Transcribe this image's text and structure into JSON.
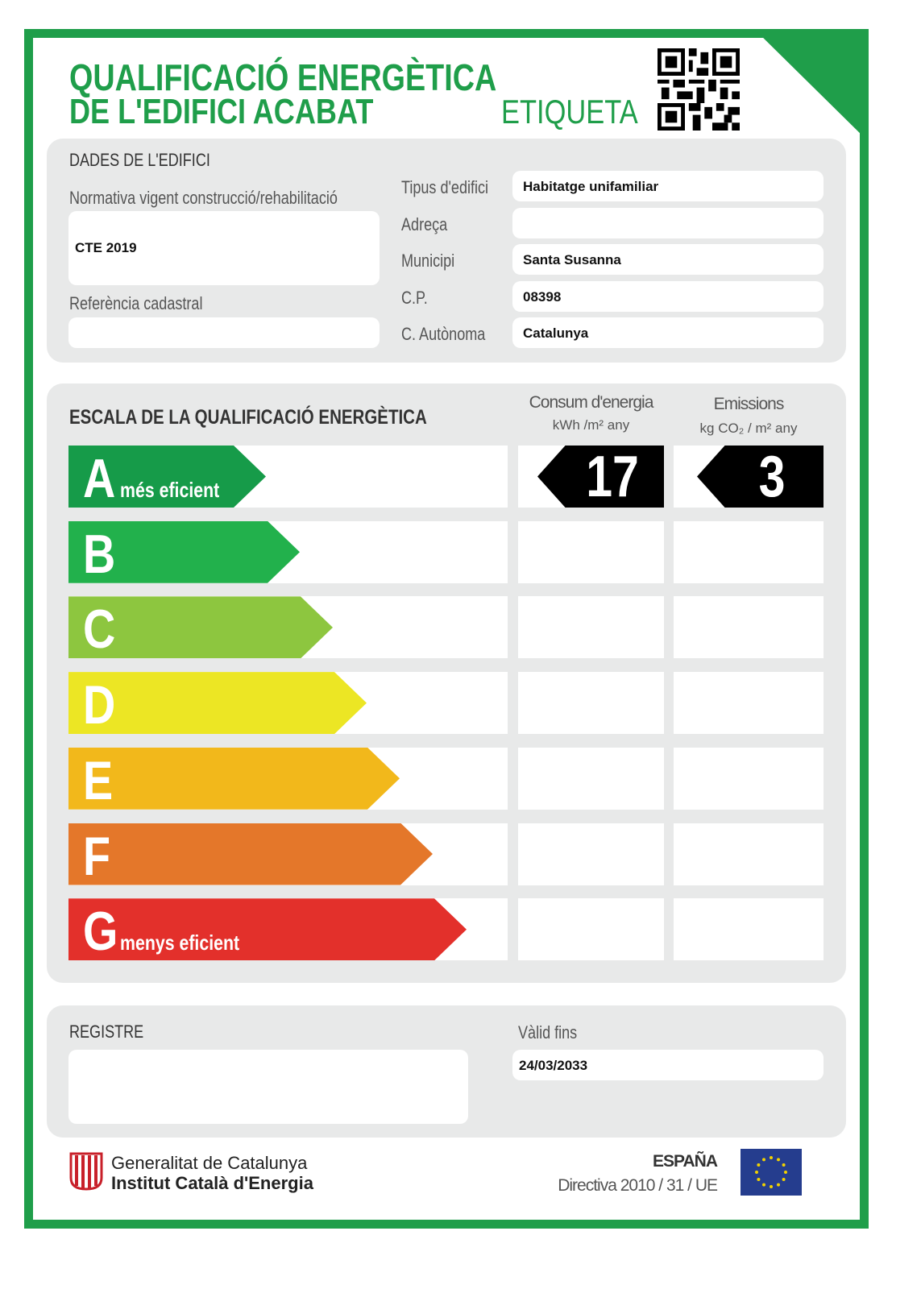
{
  "header": {
    "title_line1": "QUALIFICACIÓ ENERGÈTICA",
    "title_line2": "DE L'EDIFICI ACABAT",
    "label_type": "ETIQUETA"
  },
  "building": {
    "section_title": "DADES DE L'EDIFICI",
    "norm_label": "Normativa vigent construcció/rehabilitació",
    "norm_value": "CTE 2019",
    "cadastral_label": "Referència cadastral",
    "cadastral_value": "",
    "fields": [
      {
        "label": "Tipus d'edifici",
        "value": "Habitatge unifamiliar"
      },
      {
        "label": "Adreça",
        "value": ""
      },
      {
        "label": "Municipi",
        "value": "Santa Susanna"
      },
      {
        "label": "C.P.",
        "value": "08398"
      },
      {
        "label": "C. Autònoma",
        "value": "Catalunya"
      }
    ]
  },
  "scale": {
    "section_title": "ESCALA DE LA QUALIFICACIÓ ENERGÈTICA",
    "consumption_header": "Consum d'energia",
    "consumption_unit": "kWh /m² any",
    "emissions_header": "Emissions",
    "emissions_unit": "kg CO₂ / m² any",
    "classes": [
      {
        "letter": "A",
        "note": "més eficient",
        "color": "#169b49"
      },
      {
        "letter": "B",
        "note": "",
        "color": "#22b14c"
      },
      {
        "letter": "C",
        "note": "",
        "color": "#8dc63f"
      },
      {
        "letter": "D",
        "note": "",
        "color": "#ece624"
      },
      {
        "letter": "E",
        "note": "",
        "color": "#f2b81b"
      },
      {
        "letter": "F",
        "note": "",
        "color": "#e4772a"
      },
      {
        "letter": "G",
        "note": "menys eficient",
        "color": "#e3302b"
      }
    ],
    "consumption_value": "17",
    "consumption_class": "A",
    "emissions_value": "3",
    "emissions_class": "A"
  },
  "registry": {
    "title": "REGISTRE",
    "value": "",
    "valid_label": "Vàlid fins",
    "valid_value": "24/03/2033"
  },
  "footer": {
    "org_line1": "Generalitat de Catalunya",
    "org_line2": "Institut Català d'Energia",
    "country": "ESPAÑA",
    "directive": "Directiva 2010 / 31 / UE"
  },
  "colors": {
    "brand_green": "#1f9e4a",
    "panel_grey": "#e8e9e9"
  }
}
